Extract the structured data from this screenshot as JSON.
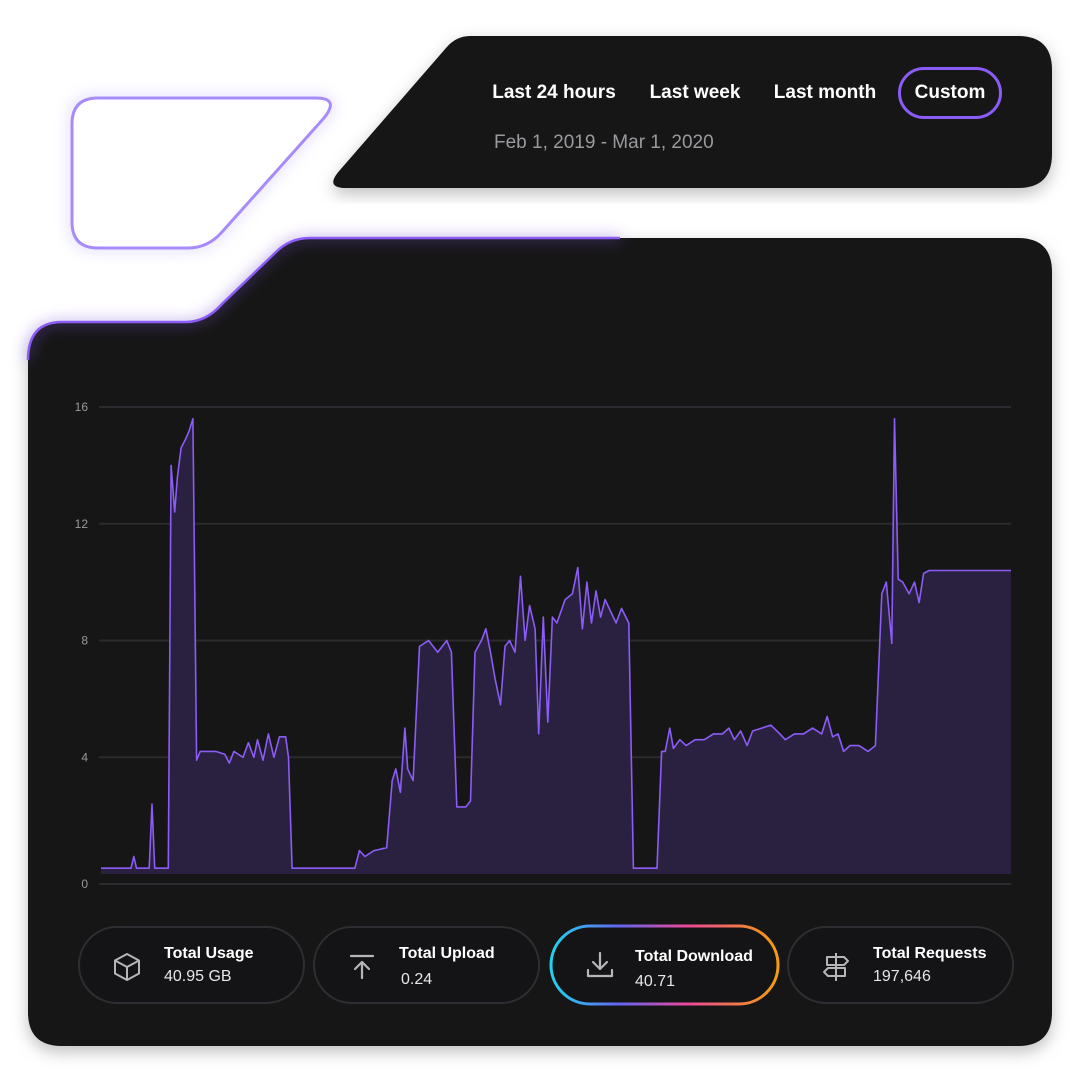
{
  "range_selector": {
    "options": [
      {
        "label": "Last 24 hours",
        "active": false
      },
      {
        "label": "Last week",
        "active": false
      },
      {
        "label": "Last month",
        "active": false
      },
      {
        "label": "Custom",
        "active": true
      }
    ],
    "date_range": "Feb 1, 2019 - Mar 1, 2020"
  },
  "colors": {
    "panel": "#141416",
    "accent": "#8b5cf6",
    "line": "#8b5cf6",
    "fill": "#2a2140",
    "grid": "#2b2b2f"
  },
  "chart_data": {
    "type": "area",
    "ylim": [
      0,
      16
    ],
    "y_ticks": [
      0,
      4,
      8,
      12,
      16
    ],
    "y_tick_labels": [
      "0",
      "4",
      "8",
      "12",
      "16"
    ],
    "grid": true,
    "x_range": [
      0,
      100
    ],
    "series": [
      {
        "points": [
          [
            0,
            0.2
          ],
          [
            3.3,
            0.2
          ],
          [
            3.6,
            0.6
          ],
          [
            3.9,
            0.2
          ],
          [
            5.3,
            0.2
          ],
          [
            5.6,
            2.4
          ],
          [
            5.9,
            0.2
          ],
          [
            7.4,
            0.2
          ],
          [
            7.7,
            14.0
          ],
          [
            8.1,
            12.4
          ],
          [
            8.4,
            13.6
          ],
          [
            8.8,
            14.6
          ],
          [
            9.3,
            14.9
          ],
          [
            9.7,
            15.2
          ],
          [
            10.1,
            15.6
          ],
          [
            10.5,
            3.9
          ],
          [
            10.9,
            4.2
          ],
          [
            11.6,
            4.2
          ],
          [
            12.6,
            4.2
          ],
          [
            13.6,
            4.1
          ],
          [
            14.1,
            3.8
          ],
          [
            14.6,
            4.2
          ],
          [
            15.6,
            4.0
          ],
          [
            16.2,
            4.5
          ],
          [
            16.8,
            4.0
          ],
          [
            17.2,
            4.6
          ],
          [
            17.8,
            3.9
          ],
          [
            18.4,
            4.8
          ],
          [
            19.0,
            4.0
          ],
          [
            19.6,
            4.7
          ],
          [
            20.3,
            4.7
          ],
          [
            20.6,
            4.0
          ],
          [
            21.0,
            0.2
          ],
          [
            27.9,
            0.2
          ],
          [
            28.4,
            0.8
          ],
          [
            29.0,
            0.6
          ],
          [
            30.0,
            0.8
          ],
          [
            31.4,
            0.9
          ],
          [
            32.0,
            3.2
          ],
          [
            32.4,
            3.6
          ],
          [
            32.9,
            2.8
          ],
          [
            33.4,
            5.0
          ],
          [
            33.7,
            3.6
          ],
          [
            34.3,
            3.2
          ],
          [
            35.0,
            7.8
          ],
          [
            36.0,
            8.0
          ],
          [
            37.0,
            7.6
          ],
          [
            38.0,
            8.0
          ],
          [
            38.5,
            7.6
          ],
          [
            39.1,
            2.3
          ],
          [
            40.1,
            2.3
          ],
          [
            40.6,
            2.5
          ],
          [
            41.1,
            7.6
          ],
          [
            41.8,
            8.0
          ],
          [
            42.3,
            8.4
          ],
          [
            42.8,
            7.6
          ],
          [
            43.3,
            6.7
          ],
          [
            43.9,
            5.8
          ],
          [
            44.4,
            7.8
          ],
          [
            44.9,
            8.0
          ],
          [
            45.5,
            7.6
          ],
          [
            46.1,
            10.2
          ],
          [
            46.6,
            8.0
          ],
          [
            47.1,
            9.2
          ],
          [
            47.7,
            8.4
          ],
          [
            48.1,
            4.8
          ],
          [
            48.6,
            8.8
          ],
          [
            49.1,
            5.2
          ],
          [
            49.6,
            8.8
          ],
          [
            50.1,
            8.6
          ],
          [
            51.0,
            9.4
          ],
          [
            51.8,
            9.6
          ],
          [
            52.4,
            10.5
          ],
          [
            52.9,
            8.4
          ],
          [
            53.4,
            10.0
          ],
          [
            53.9,
            8.6
          ],
          [
            54.4,
            9.7
          ],
          [
            54.9,
            8.8
          ],
          [
            55.4,
            9.4
          ],
          [
            56.0,
            9.0
          ],
          [
            56.6,
            8.6
          ],
          [
            57.2,
            9.1
          ],
          [
            58.0,
            8.6
          ],
          [
            58.5,
            0.2
          ],
          [
            61.1,
            0.2
          ],
          [
            61.6,
            4.2
          ],
          [
            62.0,
            4.2
          ],
          [
            62.5,
            5.0
          ],
          [
            62.9,
            4.3
          ],
          [
            63.6,
            4.6
          ],
          [
            64.3,
            4.4
          ],
          [
            65.3,
            4.6
          ],
          [
            66.3,
            4.6
          ],
          [
            67.3,
            4.8
          ],
          [
            68.3,
            4.8
          ],
          [
            69.0,
            5.0
          ],
          [
            69.6,
            4.6
          ],
          [
            70.3,
            4.9
          ],
          [
            71.0,
            4.4
          ],
          [
            71.6,
            4.9
          ],
          [
            72.6,
            5.0
          ],
          [
            73.6,
            5.1
          ],
          [
            74.6,
            4.8
          ],
          [
            75.2,
            4.6
          ],
          [
            76.2,
            4.8
          ],
          [
            77.2,
            4.8
          ],
          [
            78.2,
            5.0
          ],
          [
            79.2,
            4.8
          ],
          [
            79.8,
            5.4
          ],
          [
            80.4,
            4.7
          ],
          [
            81.0,
            4.8
          ],
          [
            81.6,
            4.2
          ],
          [
            82.3,
            4.4
          ],
          [
            83.3,
            4.4
          ],
          [
            84.3,
            4.2
          ],
          [
            85.1,
            4.4
          ],
          [
            85.8,
            9.6
          ],
          [
            86.3,
            10.0
          ],
          [
            86.9,
            7.9
          ],
          [
            87.2,
            15.6
          ],
          [
            87.6,
            10.1
          ],
          [
            88.1,
            10.0
          ],
          [
            88.8,
            9.6
          ],
          [
            89.4,
            10.0
          ],
          [
            89.9,
            9.3
          ],
          [
            90.4,
            10.3
          ],
          [
            91.0,
            10.4
          ],
          [
            100,
            10.4
          ]
        ]
      }
    ]
  },
  "stats": [
    {
      "label": "Total Usage",
      "value": "40.95 GB",
      "icon": "cube-icon",
      "highlight": false
    },
    {
      "label": "Total Upload",
      "value": "0.24",
      "icon": "upload-icon",
      "highlight": false
    },
    {
      "label": "Total Download",
      "value": "40.71",
      "icon": "download-icon",
      "highlight": true
    },
    {
      "label": "Total Requests",
      "value": "197,646",
      "icon": "signpost-icon",
      "highlight": false
    }
  ]
}
